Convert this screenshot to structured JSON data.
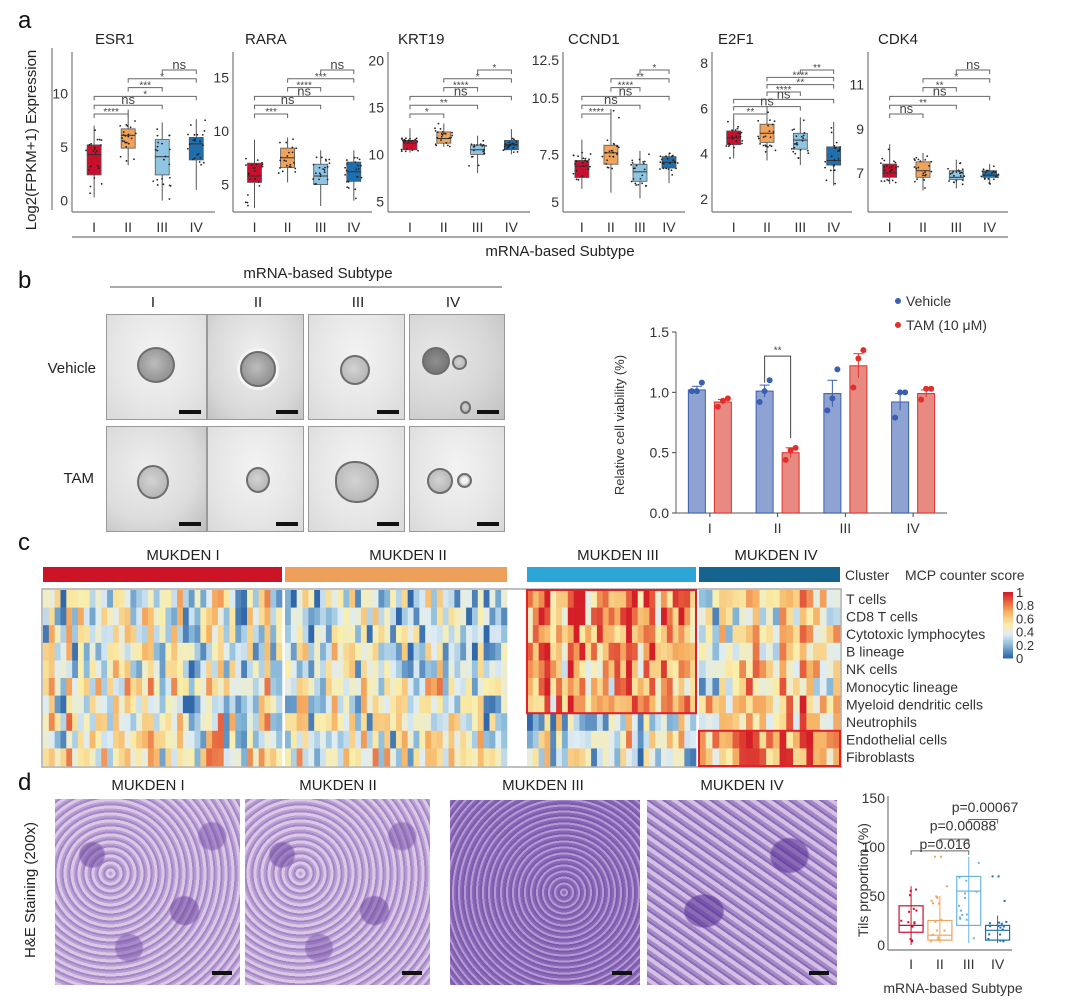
{
  "panel_labels": {
    "a": "a",
    "b": "b",
    "c": "c",
    "d": "d"
  },
  "colors": {
    "I": "#c8102e",
    "II": "#f0a35a",
    "III": "#8fc5e3",
    "IV": "#1f6fae",
    "cluster_I": "#cc1426",
    "cluster_II": "#eea05a",
    "cluster_III": "#2ba6d6",
    "cluster_IV": "#15648f",
    "vehicle": "#3a5fb0",
    "vehicle_bar": "#8ea3d2",
    "tam": "#e0302b",
    "tam_bar": "#e88a82",
    "highlight_box": "#e0202a"
  },
  "chart_data": [
    {
      "id": "a",
      "type": "box",
      "ylabel": "Log2(FPKM+1) Expression",
      "xlabel": "mRNA-based Subtype",
      "categories": [
        "I",
        "II",
        "III",
        "IV"
      ],
      "panels": [
        {
          "title": "ESR1",
          "yticks": [
            0,
            5,
            10
          ],
          "ylim": [
            -0.5,
            13.5
          ],
          "boxes": [
            {
              "q1": 2.4,
              "median": 4.3,
              "q3": 5.2,
              "min": 0.3,
              "max": 7.0
            },
            {
              "q1": 4.9,
              "median": 6.1,
              "q3": 6.7,
              "min": 3.3,
              "max": 8.5
            },
            {
              "q1": 2.4,
              "median": 4.1,
              "q3": 5.7,
              "min": 0.0,
              "max": 7.3
            },
            {
              "q1": 3.8,
              "median": 5.3,
              "q3": 5.9,
              "min": 1.0,
              "max": 7.6
            }
          ],
          "comparisons": [
            {
              "from": "I",
              "to": "II",
              "label": "****"
            },
            {
              "from": "I",
              "to": "III",
              "label": "ns"
            },
            {
              "from": "I",
              "to": "IV",
              "label": "*"
            },
            {
              "from": "II",
              "to": "III",
              "label": "***"
            },
            {
              "from": "II",
              "to": "IV",
              "label": "*"
            },
            {
              "from": "III",
              "to": "IV",
              "label": "ns"
            }
          ]
        },
        {
          "title": "RARA",
          "yticks": [
            5,
            10,
            15
          ],
          "ylim": [
            3,
            17
          ],
          "boxes": [
            {
              "q1": 5.2,
              "median": 5.8,
              "q3": 7.0,
              "min": 2.8,
              "max": 9.2
            },
            {
              "q1": 6.6,
              "median": 7.5,
              "q3": 8.4,
              "min": 5.2,
              "max": 9.4
            },
            {
              "q1": 5.0,
              "median": 5.8,
              "q3": 6.9,
              "min": 3.0,
              "max": 8.2
            },
            {
              "q1": 5.3,
              "median": 6.2,
              "q3": 7.1,
              "min": 3.5,
              "max": 8.2
            }
          ],
          "comparisons": [
            {
              "from": "I",
              "to": "II",
              "label": "***"
            },
            {
              "from": "I",
              "to": "III",
              "label": "ns"
            },
            {
              "from": "I",
              "to": "IV",
              "label": "ns"
            },
            {
              "from": "II",
              "to": "III",
              "label": "****"
            },
            {
              "from": "II",
              "to": "IV",
              "label": "***"
            },
            {
              "from": "III",
              "to": "IV",
              "label": "ns"
            }
          ]
        },
        {
          "title": "KRT19",
          "yticks": [
            5,
            15,
            10,
            20
          ],
          "ylim": [
            4.5,
            20.5
          ],
          "boxes": [
            {
              "q1": 10.5,
              "median": 11.2,
              "q3": 11.5,
              "min": 10.2,
              "max": 12.8
            },
            {
              "q1": 11.2,
              "median": 11.7,
              "q3": 12.4,
              "min": 10.8,
              "max": 13.3
            },
            {
              "q1": 10.0,
              "median": 10.5,
              "q3": 11.0,
              "min": 8.0,
              "max": 12.0
            },
            {
              "q1": 10.5,
              "median": 11.0,
              "q3": 11.5,
              "min": 10.0,
              "max": 12.7
            }
          ],
          "comparisons": [
            {
              "from": "I",
              "to": "II",
              "label": "*"
            },
            {
              "from": "I",
              "to": "III",
              "label": "**"
            },
            {
              "from": "I",
              "to": "IV",
              "label": "ns"
            },
            {
              "from": "II",
              "to": "III",
              "label": "****"
            },
            {
              "from": "II",
              "to": "IV",
              "label": "*"
            },
            {
              "from": "III",
              "to": "IV",
              "label": "*"
            }
          ]
        },
        {
          "title": "CCND1",
          "yticks": [
            5.0,
            7.5,
            10.5,
            12.5
          ],
          "ylim": [
            4.8,
            12.7
          ],
          "boxes": [
            {
              "q1": 6.3,
              "median": 6.9,
              "q3": 7.2,
              "min": 5.7,
              "max": 8.3
            },
            {
              "q1": 7.0,
              "median": 7.6,
              "q3": 8.0,
              "min": 5.5,
              "max": 9.9
            },
            {
              "q1": 6.1,
              "median": 6.6,
              "q3": 7.0,
              "min": 5.2,
              "max": 7.7
            },
            {
              "q1": 6.8,
              "median": 7.1,
              "q3": 7.4,
              "min": 6.0,
              "max": 7.6
            }
          ],
          "comparisons": [
            {
              "from": "I",
              "to": "II",
              "label": "****"
            },
            {
              "from": "I",
              "to": "III",
              "label": "ns"
            },
            {
              "from": "I",
              "to": "IV",
              "label": "ns"
            },
            {
              "from": "II",
              "to": "III",
              "label": "****"
            },
            {
              "from": "II",
              "to": "IV",
              "label": "**"
            },
            {
              "from": "III",
              "to": "IV",
              "label": "*"
            }
          ]
        },
        {
          "title": "E2F1",
          "yticks": [
            2,
            4,
            6,
            8
          ],
          "ylim": [
            1.7,
            8.3
          ],
          "boxes": [
            {
              "q1": 4.4,
              "median": 4.7,
              "q3": 5.0,
              "min": 3.8,
              "max": 5.6
            },
            {
              "q1": 4.5,
              "median": 4.9,
              "q3": 5.3,
              "min": 3.7,
              "max": 6.1
            },
            {
              "q1": 4.2,
              "median": 4.6,
              "q3": 4.9,
              "min": 3.5,
              "max": 5.6
            },
            {
              "q1": 3.5,
              "median": 3.7,
              "q3": 4.3,
              "min": 2.6,
              "max": 5.4
            }
          ],
          "comparisons": [
            {
              "from": "I",
              "to": "II",
              "label": "**"
            },
            {
              "from": "I",
              "to": "III",
              "label": "ns"
            },
            {
              "from": "I",
              "to": "IV",
              "label": "ns"
            },
            {
              "from": "II",
              "to": "III",
              "label": "****"
            },
            {
              "from": "II",
              "to": "IV",
              "label": "**"
            },
            {
              "from": "II",
              "to": "IV",
              "label": "****"
            },
            {
              "from": "III",
              "to": "IV",
              "label": "**"
            }
          ]
        },
        {
          "title": "CDK4",
          "yticks": [
            7,
            9,
            11
          ],
          "ylim": [
            5.5,
            12.3
          ],
          "boxes": [
            {
              "q1": 6.8,
              "median": 7.0,
              "q3": 7.4,
              "min": 6.5,
              "max": 8.3
            },
            {
              "q1": 6.8,
              "median": 7.1,
              "q3": 7.5,
              "min": 6.2,
              "max": 7.9
            },
            {
              "q1": 6.7,
              "median": 6.8,
              "q3": 7.1,
              "min": 6.3,
              "max": 7.6
            },
            {
              "q1": 6.8,
              "median": 6.9,
              "q3": 7.1,
              "min": 6.5,
              "max": 7.4
            }
          ],
          "comparisons": [
            {
              "from": "I",
              "to": "II",
              "label": "ns"
            },
            {
              "from": "I",
              "to": "III",
              "label": "**"
            },
            {
              "from": "I",
              "to": "IV",
              "label": "ns"
            },
            {
              "from": "II",
              "to": "III",
              "label": "**"
            },
            {
              "from": "II",
              "to": "IV",
              "label": "*"
            },
            {
              "from": "III",
              "to": "IV",
              "label": "ns"
            }
          ]
        }
      ]
    },
    {
      "id": "b-viability",
      "type": "bar",
      "ylabel": "Relative cell viability (%)",
      "categories": [
        "I",
        "II",
        "III",
        "IV"
      ],
      "yticks": [
        "0.0",
        "0.5",
        "1.0",
        "1.5"
      ],
      "ylim": [
        0,
        1.5
      ],
      "legend": {
        "placement": "top-right",
        "entries": [
          "Vehicle",
          "TAM (10 μM)"
        ]
      },
      "series": [
        {
          "name": "Vehicle",
          "values": [
            1.02,
            1.01,
            0.99,
            0.92
          ],
          "sem": [
            0.03,
            0.05,
            0.11,
            0.07
          ],
          "points": [
            [
              1.01,
              1.01,
              1.08
            ],
            [
              0.92,
              1.01,
              1.1
            ],
            [
              0.85,
              0.95,
              1.19
            ],
            [
              0.79,
              1.0,
              1.0
            ]
          ]
        },
        {
          "name": "TAM (10 μM)",
          "values": [
            0.92,
            0.5,
            1.22,
            0.99
          ],
          "sem": [
            0.02,
            0.04,
            0.1,
            0.03
          ],
          "points": [
            [
              0.88,
              0.93,
              0.95
            ],
            [
              0.44,
              0.52,
              0.54
            ],
            [
              1.04,
              1.28,
              1.35
            ],
            [
              0.94,
              1.03,
              1.03
            ]
          ]
        }
      ],
      "annotations": [
        {
          "category": "II",
          "label": "**"
        }
      ]
    },
    {
      "id": "c-heatmap",
      "type": "heatmap",
      "clusters": [
        "MUKDEN I",
        "MUKDEN II",
        "MUKDEN III",
        "MUKDEN IV"
      ],
      "cluster_label": "Cluster",
      "rows": [
        "T cells",
        "CD8 T cells",
        "Cytotoxic lymphocytes",
        "B lineage",
        "NK cells",
        "Monocytic lineage",
        "Myeloid dendritic cells",
        "Neutrophils",
        "Endothelial cells",
        "Fibroblasts"
      ],
      "colorbar": {
        "title": "MCP counter score",
        "ticks": [
          "1",
          "0.8",
          "0.6",
          "0.4",
          "0.2",
          "0"
        ],
        "range": [
          0,
          1
        ]
      },
      "column_counts": [
        41,
        38,
        29,
        21
      ],
      "cluster_mean_scores": [
        [
          0.38,
          0.35,
          0.36,
          0.4,
          0.38,
          0.48,
          0.4,
          0.47,
          0.45,
          0.5
        ],
        [
          0.33,
          0.3,
          0.32,
          0.35,
          0.33,
          0.42,
          0.38,
          0.4,
          0.42,
          0.45
        ],
        [
          0.78,
          0.78,
          0.76,
          0.75,
          0.72,
          0.68,
          0.7,
          0.35,
          0.42,
          0.4
        ],
        [
          0.5,
          0.45,
          0.47,
          0.48,
          0.52,
          0.48,
          0.62,
          0.62,
          0.75,
          0.7
        ]
      ],
      "highlights": [
        {
          "cluster": "MUKDEN III",
          "rows": [
            "T cells",
            "Myeloid dendritic cells"
          ]
        },
        {
          "cluster": "MUKDEN IV",
          "rows": [
            "Endothelial cells",
            "Fibroblasts"
          ]
        }
      ]
    },
    {
      "id": "d-tils",
      "type": "box",
      "ylabel": "Tils proportion (%)",
      "xlabel": "mRNA-based Subtype",
      "categories": [
        "I",
        "II",
        "III",
        "IV"
      ],
      "yticks": [
        0,
        50,
        100,
        150
      ],
      "ylim": [
        -5,
        150
      ],
      "boxes": [
        {
          "q1": 13,
          "median": 20,
          "q3": 40,
          "min": 0,
          "max": 60
        },
        {
          "q1": 5,
          "median": 10,
          "q3": 25,
          "min": 2,
          "max": 50
        },
        {
          "q1": 20,
          "median": 55,
          "q3": 70,
          "min": 2,
          "max": 90
        },
        {
          "q1": 5,
          "median": 15,
          "q3": 20,
          "min": 2,
          "max": 30
        }
      ],
      "outliers": [
        [],
        [
          90,
          90,
          60
        ],
        [],
        [
          70,
          70,
          45
        ]
      ],
      "comparisons": [
        {
          "from": "I",
          "to": "III",
          "label": "p=0.016"
        },
        {
          "from": "II",
          "to": "III",
          "label": "p=0.00088"
        },
        {
          "from": "III",
          "to": "IV",
          "label": "p=0.00067"
        }
      ]
    }
  ],
  "panel_b": {
    "header": "mRNA-based Subtype",
    "columns": [
      "I",
      "II",
      "III",
      "IV"
    ],
    "rows": [
      "Vehicle",
      "TAM"
    ]
  },
  "panel_d": {
    "ylabel": "H&E Staining (200x)",
    "columns": [
      "MUKDEN I",
      "MUKDEN II",
      "MUKDEN III",
      "MUKDEN IV"
    ]
  }
}
